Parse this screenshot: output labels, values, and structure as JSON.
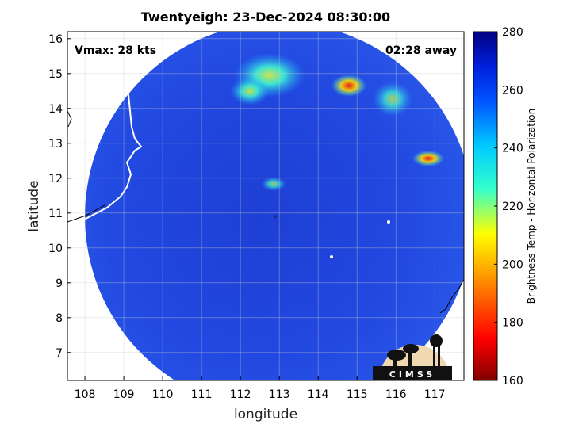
{
  "title": "Twentyeigh: 23-Dec-2024 08:30:00",
  "annotations": {
    "vmax": "Vmax: 28 kts",
    "time_away": "02:28 away"
  },
  "map": {
    "xlabel": "longitude",
    "ylabel": "latitude",
    "xlim": [
      107.55,
      117.75
    ],
    "ylim": [
      6.2,
      16.2
    ],
    "xticks": [
      "108",
      "109",
      "110",
      "111",
      "112",
      "113",
      "114",
      "115",
      "116",
      "117"
    ],
    "yticks": [
      "7",
      "8",
      "9",
      "10",
      "11",
      "12",
      "13",
      "14",
      "15",
      "16"
    ],
    "grid": true,
    "swath_center": {
      "lon": 113.0,
      "lat": 10.9
    },
    "swath_radius_deg": 5.0,
    "storm_center": {
      "lon": 112.9,
      "lat": 10.9
    }
  },
  "colorbar": {
    "label": "Brightness Temp - Horizontal Polarization",
    "range": [
      160,
      280
    ],
    "ticks": [
      "280",
      "260",
      "240",
      "220",
      "200",
      "180",
      "160"
    ],
    "colormap": "jet"
  },
  "logo": {
    "text": "CIMSS"
  },
  "colors": {
    "background_pixel": "#1f3fd8",
    "outside_swath": "#ffffff",
    "coastline": "#ffffff",
    "map_edge": "#000000"
  }
}
